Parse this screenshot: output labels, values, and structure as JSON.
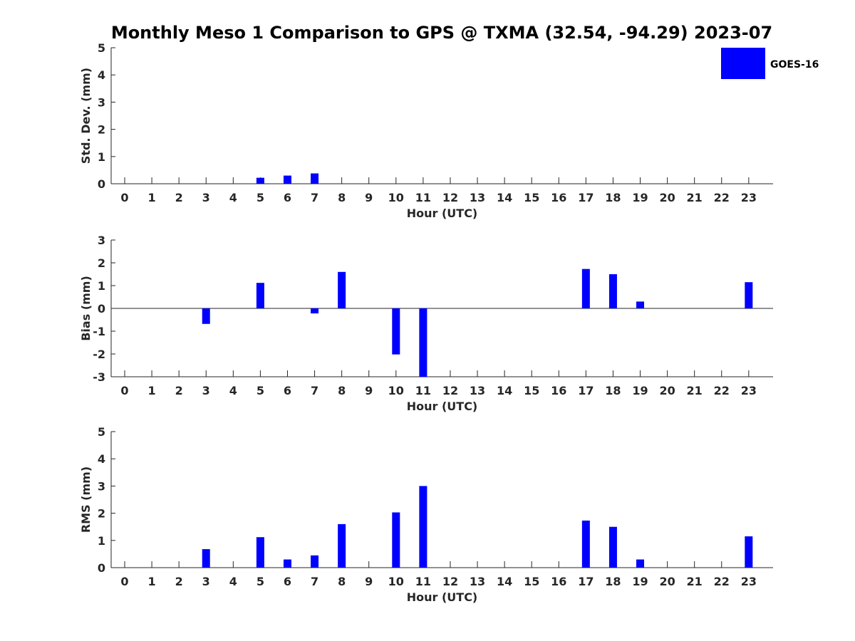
{
  "title": "Monthly Meso 1 Comparison to GPS @ TXMA (32.54, -94.29) 2023-07",
  "legend": {
    "label": "GOES-16",
    "color": "#0000ff",
    "placement": "top-right"
  },
  "chart_data": [
    {
      "type": "bar",
      "name": "std-dev",
      "ylabel": "Std. Dev. (mm)",
      "xlabel": "Hour (UTC)",
      "ylim": [
        0,
        5
      ],
      "yticks": [
        0,
        1,
        2,
        3,
        4,
        5
      ],
      "categories": [
        0,
        1,
        2,
        3,
        4,
        5,
        6,
        7,
        8,
        9,
        10,
        11,
        12,
        13,
        14,
        15,
        16,
        17,
        18,
        19,
        20,
        21,
        22,
        23
      ],
      "values": [
        0,
        0,
        0,
        0,
        0,
        0.22,
        0.3,
        0.38,
        0,
        0,
        0,
        0,
        0,
        0,
        0,
        0,
        0,
        0,
        0,
        0,
        0,
        0,
        0,
        0
      ],
      "grid": false
    },
    {
      "type": "bar",
      "name": "bias",
      "ylabel": "Bias (mm)",
      "xlabel": "Hour (UTC)",
      "ylim": [
        -3,
        3
      ],
      "yticks": [
        -3,
        -2,
        -1,
        0,
        1,
        2,
        3
      ],
      "categories": [
        0,
        1,
        2,
        3,
        4,
        5,
        6,
        7,
        8,
        9,
        10,
        11,
        12,
        13,
        14,
        15,
        16,
        17,
        18,
        19,
        20,
        21,
        22,
        23
      ],
      "values": [
        0,
        0,
        0,
        -0.68,
        0,
        1.12,
        0,
        -0.22,
        1.6,
        0,
        -2.02,
        -3.0,
        0,
        0,
        0,
        0,
        0,
        1.73,
        1.5,
        0.3,
        0,
        0,
        0,
        1.15
      ],
      "grid": false
    },
    {
      "type": "bar",
      "name": "rms",
      "ylabel": "RMS (mm)",
      "xlabel": "Hour (UTC)",
      "ylim": [
        0,
        5
      ],
      "yticks": [
        0,
        1,
        2,
        3,
        4,
        5
      ],
      "categories": [
        0,
        1,
        2,
        3,
        4,
        5,
        6,
        7,
        8,
        9,
        10,
        11,
        12,
        13,
        14,
        15,
        16,
        17,
        18,
        19,
        20,
        21,
        22,
        23
      ],
      "values": [
        0,
        0,
        0,
        0.68,
        0,
        1.12,
        0.3,
        0.45,
        1.6,
        0,
        2.03,
        3.0,
        0,
        0,
        0,
        0,
        0,
        1.73,
        1.5,
        0.3,
        0,
        0,
        0,
        1.15
      ],
      "grid": false
    }
  ]
}
